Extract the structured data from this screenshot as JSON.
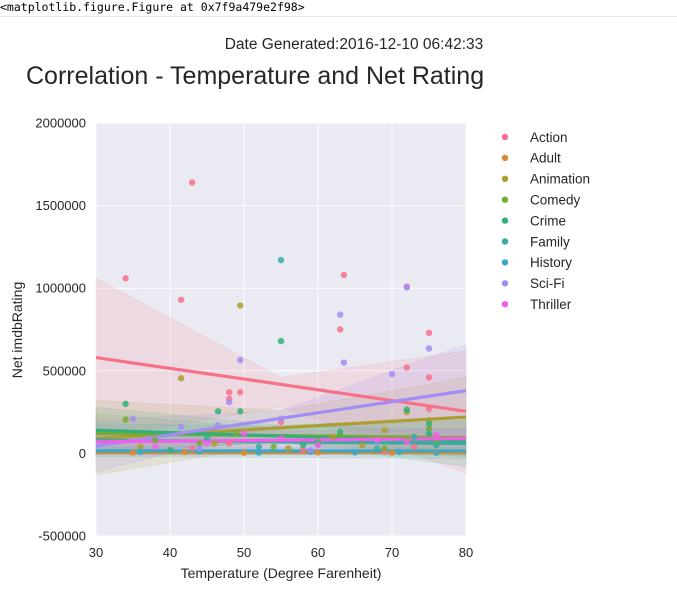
{
  "output_repr": "<matplotlib.figure.Figure at 0x7f9a479e2f98>",
  "chart_data": {
    "type": "scatter",
    "suptitle": "Date Generated:2016-12-10 06:42:33",
    "title": "Correlation - Temperature and Net Rating",
    "xlabel": "Temperature (Degree Farenheit)",
    "ylabel": "Net imdbRating",
    "xlim": [
      30,
      80
    ],
    "ylim": [
      -500000,
      2000000
    ],
    "xticks": [
      30,
      40,
      50,
      60,
      70,
      80
    ],
    "yticks": [
      -500000,
      0,
      500000,
      1000000,
      1500000,
      2000000
    ],
    "grid": true,
    "legend_position": "right",
    "series": [
      {
        "name": "Action",
        "color": "#f77189",
        "points": [
          [
            34,
            1060000
          ],
          [
            41.5,
            930000
          ],
          [
            43,
            1640000
          ],
          [
            48,
            370000
          ],
          [
            48,
            330000
          ],
          [
            49.5,
            370000
          ],
          [
            55,
            190000
          ],
          [
            63,
            750000
          ],
          [
            63.5,
            1080000
          ],
          [
            72,
            520000
          ],
          [
            75,
            730000
          ],
          [
            75,
            460000
          ],
          [
            75,
            270000
          ],
          [
            72,
            1010000
          ],
          [
            43,
            30000
          ],
          [
            48,
            60000
          ],
          [
            58,
            20000
          ],
          [
            69,
            10000
          ],
          [
            73,
            40000
          ]
        ],
        "fit": [
          [
            30,
            580000
          ],
          [
            80,
            255000
          ]
        ],
        "band_lo": [
          [
            30,
            90000
          ],
          [
            55,
            280000
          ],
          [
            80,
            -120000
          ]
        ],
        "band_hi": [
          [
            30,
            1060000
          ],
          [
            55,
            460000
          ],
          [
            80,
            620000
          ]
        ]
      },
      {
        "name": "Adult",
        "color": "#dc8932",
        "points": [
          [
            35,
            5000
          ],
          [
            42,
            8000
          ],
          [
            50,
            3000
          ],
          [
            60,
            6000
          ],
          [
            70,
            4000
          ],
          [
            76,
            7000
          ]
        ],
        "fit": [
          [
            30,
            5000
          ],
          [
            80,
            5000
          ]
        ],
        "band_lo": [
          [
            30,
            -10000
          ],
          [
            80,
            -10000
          ]
        ],
        "band_hi": [
          [
            30,
            20000
          ],
          [
            80,
            20000
          ]
        ]
      },
      {
        "name": "Animation",
        "color": "#ae9d31",
        "points": [
          [
            41.5,
            455000
          ],
          [
            49.5,
            895000
          ],
          [
            62,
            100000
          ],
          [
            69,
            140000
          ],
          [
            72,
            250000
          ],
          [
            75,
            200000
          ],
          [
            36,
            40000
          ],
          [
            46,
            60000
          ],
          [
            56,
            30000
          ],
          [
            66,
            50000
          ]
        ],
        "fit": [
          [
            30,
            90000
          ],
          [
            80,
            220000
          ]
        ],
        "band_lo": [
          [
            30,
            -130000
          ],
          [
            55,
            60000
          ],
          [
            80,
            -20000
          ]
        ],
        "band_hi": [
          [
            30,
            320000
          ],
          [
            55,
            260000
          ],
          [
            80,
            460000
          ]
        ]
      },
      {
        "name": "Comedy",
        "color": "#77ab31",
        "points": [
          [
            34,
            205000
          ],
          [
            38,
            80000
          ],
          [
            44,
            60000
          ],
          [
            49,
            120000
          ],
          [
            54,
            40000
          ],
          [
            60,
            70000
          ],
          [
            63,
            110000
          ],
          [
            69,
            30000
          ],
          [
            72,
            90000
          ],
          [
            75,
            150000
          ],
          [
            76,
            60000
          ]
        ],
        "fit": [
          [
            30,
            120000
          ],
          [
            80,
            95000
          ]
        ],
        "band_lo": [
          [
            30,
            0
          ],
          [
            55,
            70000
          ],
          [
            80,
            -10000
          ]
        ],
        "band_hi": [
          [
            30,
            240000
          ],
          [
            55,
            150000
          ],
          [
            80,
            200000
          ]
        ]
      },
      {
        "name": "Crime",
        "color": "#33b07a",
        "points": [
          [
            34,
            300000
          ],
          [
            46.5,
            255000
          ],
          [
            49.5,
            255000
          ],
          [
            55,
            680000
          ],
          [
            63,
            130000
          ],
          [
            72,
            265000
          ],
          [
            75,
            180000
          ],
          [
            75,
            120000
          ],
          [
            40,
            20000
          ],
          [
            58,
            50000
          ]
        ],
        "fit": [
          [
            30,
            140000
          ],
          [
            80,
            70000
          ]
        ],
        "band_lo": [
          [
            30,
            0
          ],
          [
            55,
            70000
          ],
          [
            80,
            -80000
          ]
        ],
        "band_hi": [
          [
            30,
            280000
          ],
          [
            55,
            170000
          ],
          [
            80,
            220000
          ]
        ]
      },
      {
        "name": "Family",
        "color": "#36ada4",
        "points": [
          [
            55,
            1170000
          ],
          [
            45,
            90000
          ],
          [
            52,
            40000
          ],
          [
            60,
            60000
          ],
          [
            68,
            30000
          ],
          [
            73,
            100000
          ],
          [
            76,
            50000
          ]
        ],
        "fit": [
          [
            30,
            80000
          ],
          [
            80,
            60000
          ]
        ],
        "band_lo": [
          [
            30,
            -20000
          ],
          [
            80,
            -30000
          ]
        ],
        "band_hi": [
          [
            30,
            180000
          ],
          [
            80,
            150000
          ]
        ]
      },
      {
        "name": "History",
        "color": "#38a9c5",
        "points": [
          [
            36,
            8000
          ],
          [
            44,
            12000
          ],
          [
            52,
            5000
          ],
          [
            59,
            10000
          ],
          [
            65,
            6000
          ],
          [
            71,
            9000
          ],
          [
            76,
            4000
          ]
        ],
        "fit": [
          [
            30,
            15000
          ],
          [
            80,
            15000
          ]
        ],
        "band_lo": [
          [
            30,
            -5000
          ],
          [
            80,
            -5000
          ]
        ],
        "band_hi": [
          [
            30,
            35000
          ],
          [
            80,
            35000
          ]
        ]
      },
      {
        "name": "Sci-Fi",
        "color": "#a48cf4",
        "points": [
          [
            35,
            210000
          ],
          [
            41.5,
            160000
          ],
          [
            46.5,
            170000
          ],
          [
            48,
            310000
          ],
          [
            49.5,
            565000
          ],
          [
            55,
            210000
          ],
          [
            63,
            840000
          ],
          [
            63.5,
            550000
          ],
          [
            70,
            480000
          ],
          [
            72,
            1005000
          ],
          [
            75,
            635000
          ],
          [
            44,
            30000
          ],
          [
            59,
            20000
          ]
        ],
        "fit": [
          [
            30,
            45000
          ],
          [
            80,
            380000
          ]
        ],
        "band_lo": [
          [
            30,
            -110000
          ],
          [
            55,
            170000
          ],
          [
            80,
            110000
          ]
        ],
        "band_hi": [
          [
            30,
            200000
          ],
          [
            55,
            260000
          ],
          [
            80,
            660000
          ]
        ]
      },
      {
        "name": "Thriller",
        "color": "#f45deb",
        "points": [
          [
            38,
            40000
          ],
          [
            45,
            60000
          ],
          [
            50,
            120000
          ],
          [
            55,
            90000
          ],
          [
            60,
            50000
          ],
          [
            68,
            80000
          ],
          [
            72,
            70000
          ],
          [
            76,
            110000
          ]
        ],
        "fit": [
          [
            30,
            70000
          ],
          [
            80,
            90000
          ]
        ],
        "band_lo": [
          [
            30,
            20000
          ],
          [
            80,
            30000
          ]
        ],
        "band_hi": [
          [
            30,
            120000
          ],
          [
            80,
            150000
          ]
        ]
      }
    ]
  }
}
